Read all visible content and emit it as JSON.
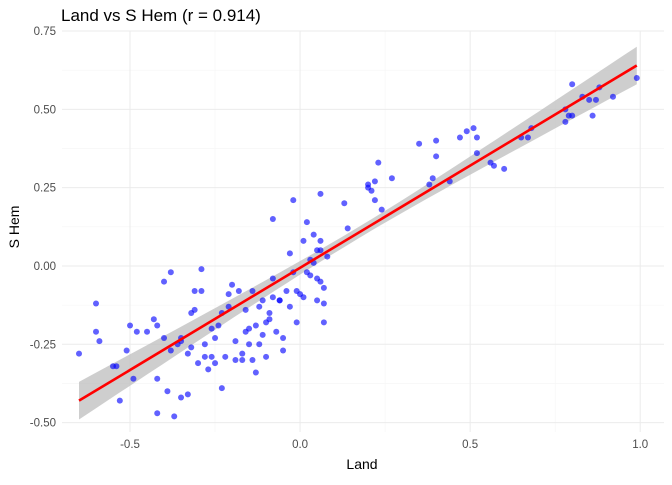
{
  "chart_data": {
    "type": "scatter",
    "title": "Land vs S Hem (r = 0.914)",
    "xlabel": "Land",
    "ylabel": "S Hem",
    "xlim": [
      -0.7,
      1.07
    ],
    "ylim": [
      -0.53,
      0.75
    ],
    "x_ticks": [
      -0.5,
      0.0,
      0.5,
      1.0
    ],
    "x_tick_labels": [
      "-0.5",
      "0.0",
      "0.5",
      "1.0"
    ],
    "y_ticks": [
      -0.5,
      -0.25,
      0.0,
      0.25,
      0.5,
      0.75
    ],
    "y_tick_labels": [
      "-0.50",
      "-0.25",
      "0.00",
      "0.25",
      "0.50",
      "0.75"
    ],
    "grid": true,
    "legend": "none",
    "colors": {
      "points": "#0000ff",
      "fit_line": "#ff0000",
      "confidence_band": "#bdbdbd",
      "grid": "#ebebeb"
    },
    "fit": {
      "type": "linear",
      "start": [
        -0.65,
        -0.43
      ],
      "end": [
        0.99,
        0.64
      ],
      "band_halfwidth_at_ends": 0.06,
      "band_halfwidth_at_center": 0.018
    },
    "points": [
      [
        -0.65,
        -0.28
      ],
      [
        -0.6,
        -0.12
      ],
      [
        -0.6,
        -0.21
      ],
      [
        -0.59,
        -0.24
      ],
      [
        -0.55,
        -0.32
      ],
      [
        -0.54,
        -0.32
      ],
      [
        -0.53,
        -0.43
      ],
      [
        -0.51,
        -0.27
      ],
      [
        -0.5,
        -0.19
      ],
      [
        -0.49,
        -0.36
      ],
      [
        -0.48,
        -0.21
      ],
      [
        -0.45,
        -0.21
      ],
      [
        -0.43,
        -0.17
      ],
      [
        -0.42,
        -0.19
      ],
      [
        -0.42,
        -0.36
      ],
      [
        -0.42,
        -0.47
      ],
      [
        -0.4,
        -0.05
      ],
      [
        -0.4,
        -0.23
      ],
      [
        -0.39,
        -0.4
      ],
      [
        -0.38,
        -0.02
      ],
      [
        -0.38,
        -0.27
      ],
      [
        -0.37,
        -0.48
      ],
      [
        -0.36,
        -0.25
      ],
      [
        -0.35,
        -0.23
      ],
      [
        -0.35,
        -0.24
      ],
      [
        -0.35,
        -0.42
      ],
      [
        -0.33,
        -0.28
      ],
      [
        -0.33,
        -0.41
      ],
      [
        -0.32,
        -0.26
      ],
      [
        -0.32,
        -0.15
      ],
      [
        -0.31,
        -0.14
      ],
      [
        -0.31,
        -0.08
      ],
      [
        -0.3,
        -0.31
      ],
      [
        -0.29,
        -0.01
      ],
      [
        -0.29,
        -0.08
      ],
      [
        -0.28,
        -0.25
      ],
      [
        -0.28,
        -0.29
      ],
      [
        -0.27,
        -0.33
      ],
      [
        -0.26,
        -0.2
      ],
      [
        -0.26,
        -0.29
      ],
      [
        -0.25,
        -0.31
      ],
      [
        -0.25,
        -0.23
      ],
      [
        -0.24,
        -0.19
      ],
      [
        -0.23,
        -0.15
      ],
      [
        -0.23,
        -0.39
      ],
      [
        -0.22,
        -0.29
      ],
      [
        -0.21,
        -0.09
      ],
      [
        -0.21,
        -0.13
      ],
      [
        -0.2,
        -0.06
      ],
      [
        -0.19,
        -0.24
      ],
      [
        -0.19,
        -0.3
      ],
      [
        -0.18,
        -0.08
      ],
      [
        -0.17,
        -0.3
      ],
      [
        -0.17,
        -0.28
      ],
      [
        -0.16,
        -0.14
      ],
      [
        -0.16,
        -0.21
      ],
      [
        -0.15,
        -0.2
      ],
      [
        -0.15,
        -0.25
      ],
      [
        -0.14,
        -0.08
      ],
      [
        -0.14,
        -0.3
      ],
      [
        -0.13,
        -0.19
      ],
      [
        -0.13,
        -0.34
      ],
      [
        -0.12,
        -0.25
      ],
      [
        -0.12,
        -0.13
      ],
      [
        -0.11,
        -0.11
      ],
      [
        -0.11,
        -0.22
      ],
      [
        -0.1,
        -0.18
      ],
      [
        -0.1,
        -0.29
      ],
      [
        -0.09,
        -0.17
      ],
      [
        -0.09,
        -0.15
      ],
      [
        -0.08,
        -0.1
      ],
      [
        -0.08,
        -0.04
      ],
      [
        -0.08,
        0.15
      ],
      [
        -0.07,
        -0.21
      ],
      [
        -0.06,
        -0.11
      ],
      [
        -0.06,
        -0.11
      ],
      [
        -0.05,
        -0.23
      ],
      [
        -0.05,
        -0.27
      ],
      [
        -0.04,
        -0.08
      ],
      [
        -0.03,
        0.04
      ],
      [
        -0.03,
        -0.13
      ],
      [
        -0.02,
        -0.02
      ],
      [
        -0.02,
        0.21
      ],
      [
        -0.01,
        -0.08
      ],
      [
        -0.01,
        -0.18
      ],
      [
        0.0,
        -0.09
      ],
      [
        0.01,
        0.08
      ],
      [
        0.01,
        -0.1
      ],
      [
        0.02,
        -0.02
      ],
      [
        0.02,
        0.14
      ],
      [
        0.03,
        0.02
      ],
      [
        0.03,
        -0.03
      ],
      [
        0.04,
        0.01
      ],
      [
        0.04,
        0.1
      ],
      [
        0.05,
        0.05
      ],
      [
        0.05,
        -0.04
      ],
      [
        0.05,
        -0.11
      ],
      [
        0.06,
        0.05
      ],
      [
        0.06,
        0.08
      ],
      [
        0.06,
        0.23
      ],
      [
        0.06,
        -0.05
      ],
      [
        0.07,
        -0.07
      ],
      [
        0.07,
        -0.12
      ],
      [
        0.07,
        -0.18
      ],
      [
        0.08,
        0.03
      ],
      [
        0.13,
        0.2
      ],
      [
        0.14,
        0.12
      ],
      [
        0.2,
        0.26
      ],
      [
        0.2,
        0.25
      ],
      [
        0.21,
        0.24
      ],
      [
        0.22,
        0.21
      ],
      [
        0.22,
        0.27
      ],
      [
        0.23,
        0.33
      ],
      [
        0.24,
        0.18
      ],
      [
        0.27,
        0.28
      ],
      [
        0.35,
        0.39
      ],
      [
        0.38,
        0.26
      ],
      [
        0.39,
        0.28
      ],
      [
        0.4,
        0.35
      ],
      [
        0.4,
        0.4
      ],
      [
        0.44,
        0.27
      ],
      [
        0.47,
        0.41
      ],
      [
        0.49,
        0.43
      ],
      [
        0.51,
        0.44
      ],
      [
        0.52,
        0.36
      ],
      [
        0.52,
        0.41
      ],
      [
        0.56,
        0.33
      ],
      [
        0.57,
        0.32
      ],
      [
        0.6,
        0.31
      ],
      [
        0.65,
        0.41
      ],
      [
        0.67,
        0.41
      ],
      [
        0.68,
        0.44
      ],
      [
        0.78,
        0.46
      ],
      [
        0.78,
        0.5
      ],
      [
        0.79,
        0.48
      ],
      [
        0.8,
        0.48
      ],
      [
        0.8,
        0.58
      ],
      [
        0.83,
        0.54
      ],
      [
        0.85,
        0.53
      ],
      [
        0.86,
        0.48
      ],
      [
        0.87,
        0.53
      ],
      [
        0.88,
        0.57
      ],
      [
        0.92,
        0.54
      ],
      [
        0.99,
        0.6
      ]
    ]
  }
}
